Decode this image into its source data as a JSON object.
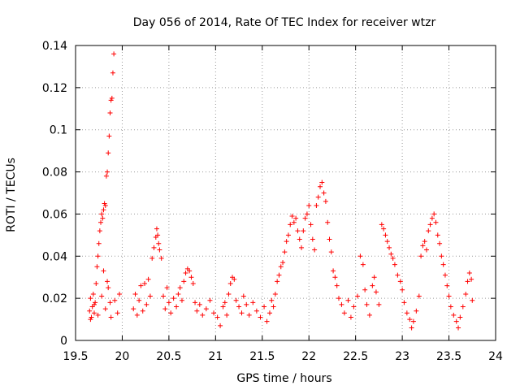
{
  "chart_data": {
    "type": "scatter",
    "title": "Day 056 of 2014, Rate Of TEC Index for receiver wtzr",
    "xlabel": "GPS time / hours",
    "ylabel": "ROTI / TECUs",
    "xlim": [
      19.5,
      24
    ],
    "ylim": [
      0,
      0.14
    ],
    "xticks": [
      19.5,
      20,
      20.5,
      21,
      21.5,
      22,
      22.5,
      23,
      23.5,
      24
    ],
    "xtick_labels": [
      "19.5",
      "20",
      "20.5",
      "21",
      "21.5",
      "22",
      "22.5",
      "23",
      "23.5",
      "24"
    ],
    "yticks": [
      0,
      0.02,
      0.04,
      0.06,
      0.08,
      0.1,
      0.12,
      0.14
    ],
    "ytick_labels": [
      "0",
      "0.02",
      "0.04",
      "0.06",
      "0.08",
      "0.1",
      "0.12",
      "0.14"
    ],
    "grid": true,
    "marker": "plus",
    "color": "#ff0000",
    "series": [
      {
        "name": "ROTI",
        "points": [
          [
            19.65,
            0.014
          ],
          [
            19.66,
            0.02
          ],
          [
            19.67,
            0.011
          ],
          [
            19.68,
            0.016
          ],
          [
            19.69,
            0.022
          ],
          [
            19.7,
            0.013
          ],
          [
            19.71,
            0.018
          ],
          [
            19.72,
            0.027
          ],
          [
            19.73,
            0.035
          ],
          [
            19.74,
            0.04
          ],
          [
            19.75,
            0.046
          ],
          [
            19.76,
            0.052
          ],
          [
            19.77,
            0.056
          ],
          [
            19.78,
            0.06
          ],
          [
            19.79,
            0.058
          ],
          [
            19.8,
            0.062
          ],
          [
            19.81,
            0.065
          ],
          [
            19.82,
            0.064
          ],
          [
            19.83,
            0.078
          ],
          [
            19.84,
            0.08
          ],
          [
            19.85,
            0.089
          ],
          [
            19.86,
            0.097
          ],
          [
            19.87,
            0.108
          ],
          [
            19.88,
            0.114
          ],
          [
            19.89,
            0.115
          ],
          [
            19.9,
            0.127
          ],
          [
            19.91,
            0.136
          ],
          [
            19.66,
            0.01
          ],
          [
            19.7,
            0.017
          ],
          [
            19.74,
            0.012
          ],
          [
            19.78,
            0.021
          ],
          [
            19.82,
            0.015
          ],
          [
            19.85,
            0.025
          ],
          [
            19.88,
            0.011
          ],
          [
            19.92,
            0.019
          ],
          [
            19.95,
            0.013
          ],
          [
            19.97,
            0.022
          ],
          [
            19.8,
            0.033
          ],
          [
            19.84,
            0.028
          ],
          [
            19.87,
            0.018
          ],
          [
            20.12,
            0.015
          ],
          [
            20.14,
            0.022
          ],
          [
            20.16,
            0.012
          ],
          [
            20.18,
            0.019
          ],
          [
            20.2,
            0.026
          ],
          [
            20.22,
            0.014
          ],
          [
            20.24,
            0.027
          ],
          [
            20.26,
            0.017
          ],
          [
            20.28,
            0.029
          ],
          [
            20.3,
            0.021
          ],
          [
            20.32,
            0.039
          ],
          [
            20.34,
            0.044
          ],
          [
            20.36,
            0.049
          ],
          [
            20.37,
            0.053
          ],
          [
            20.38,
            0.05
          ],
          [
            20.39,
            0.046
          ],
          [
            20.4,
            0.043
          ],
          [
            20.42,
            0.039
          ],
          [
            20.44,
            0.021
          ],
          [
            20.46,
            0.015
          ],
          [
            20.48,
            0.025
          ],
          [
            20.5,
            0.018
          ],
          [
            20.52,
            0.013
          ],
          [
            20.55,
            0.02
          ],
          [
            20.58,
            0.016
          ],
          [
            20.6,
            0.022
          ],
          [
            20.62,
            0.025
          ],
          [
            20.64,
            0.019
          ],
          [
            20.66,
            0.028
          ],
          [
            20.68,
            0.032
          ],
          [
            20.7,
            0.034
          ],
          [
            20.72,
            0.033
          ],
          [
            20.74,
            0.03
          ],
          [
            20.76,
            0.027
          ],
          [
            20.78,
            0.018
          ],
          [
            20.8,
            0.014
          ],
          [
            20.83,
            0.017
          ],
          [
            20.86,
            0.012
          ],
          [
            20.9,
            0.015
          ],
          [
            20.94,
            0.019
          ],
          [
            20.98,
            0.013
          ],
          [
            21.02,
            0.011
          ],
          [
            21.05,
            0.007
          ],
          [
            21.08,
            0.016
          ],
          [
            21.1,
            0.018
          ],
          [
            21.12,
            0.012
          ],
          [
            21.14,
            0.022
          ],
          [
            21.16,
            0.027
          ],
          [
            21.18,
            0.03
          ],
          [
            21.2,
            0.029
          ],
          [
            21.22,
            0.019
          ],
          [
            21.25,
            0.016
          ],
          [
            21.28,
            0.013
          ],
          [
            21.3,
            0.021
          ],
          [
            21.33,
            0.017
          ],
          [
            21.36,
            0.012
          ],
          [
            21.4,
            0.018
          ],
          [
            21.44,
            0.014
          ],
          [
            21.48,
            0.011
          ],
          [
            21.52,
            0.016
          ],
          [
            21.55,
            0.009
          ],
          [
            21.58,
            0.013
          ],
          [
            21.6,
            0.019
          ],
          [
            21.62,
            0.016
          ],
          [
            21.64,
            0.022
          ],
          [
            21.66,
            0.028
          ],
          [
            21.68,
            0.031
          ],
          [
            21.7,
            0.035
          ],
          [
            21.72,
            0.037
          ],
          [
            21.74,
            0.042
          ],
          [
            21.76,
            0.047
          ],
          [
            21.78,
            0.05
          ],
          [
            21.8,
            0.055
          ],
          [
            21.82,
            0.059
          ],
          [
            21.84,
            0.056
          ],
          [
            21.86,
            0.058
          ],
          [
            21.88,
            0.052
          ],
          [
            21.9,
            0.048
          ],
          [
            21.92,
            0.044
          ],
          [
            21.94,
            0.052
          ],
          [
            21.96,
            0.058
          ],
          [
            21.98,
            0.06
          ],
          [
            22.0,
            0.064
          ],
          [
            22.02,
            0.055
          ],
          [
            22.04,
            0.048
          ],
          [
            22.06,
            0.043
          ],
          [
            22.08,
            0.064
          ],
          [
            22.1,
            0.068
          ],
          [
            22.12,
            0.073
          ],
          [
            22.14,
            0.075
          ],
          [
            22.16,
            0.07
          ],
          [
            22.18,
            0.066
          ],
          [
            22.2,
            0.056
          ],
          [
            22.22,
            0.048
          ],
          [
            22.24,
            0.042
          ],
          [
            22.26,
            0.033
          ],
          [
            22.28,
            0.03
          ],
          [
            22.3,
            0.026
          ],
          [
            22.32,
            0.02
          ],
          [
            22.35,
            0.017
          ],
          [
            22.38,
            0.013
          ],
          [
            22.42,
            0.019
          ],
          [
            22.45,
            0.011
          ],
          [
            22.48,
            0.016
          ],
          [
            22.52,
            0.021
          ],
          [
            22.55,
            0.04
          ],
          [
            22.58,
            0.036
          ],
          [
            22.6,
            0.024
          ],
          [
            22.62,
            0.017
          ],
          [
            22.65,
            0.012
          ],
          [
            22.68,
            0.026
          ],
          [
            22.7,
            0.03
          ],
          [
            22.72,
            0.023
          ],
          [
            22.75,
            0.017
          ],
          [
            22.78,
            0.055
          ],
          [
            22.8,
            0.053
          ],
          [
            22.82,
            0.05
          ],
          [
            22.84,
            0.047
          ],
          [
            22.86,
            0.044
          ],
          [
            22.88,
            0.041
          ],
          [
            22.9,
            0.039
          ],
          [
            22.92,
            0.036
          ],
          [
            22.95,
            0.031
          ],
          [
            22.98,
            0.028
          ],
          [
            23.0,
            0.024
          ],
          [
            23.02,
            0.018
          ],
          [
            23.05,
            0.013
          ],
          [
            23.08,
            0.01
          ],
          [
            23.1,
            0.006
          ],
          [
            23.12,
            0.009
          ],
          [
            23.15,
            0.014
          ],
          [
            23.18,
            0.021
          ],
          [
            23.2,
            0.04
          ],
          [
            23.22,
            0.045
          ],
          [
            23.24,
            0.047
          ],
          [
            23.26,
            0.043
          ],
          [
            23.28,
            0.052
          ],
          [
            23.3,
            0.055
          ],
          [
            23.32,
            0.058
          ],
          [
            23.34,
            0.06
          ],
          [
            23.36,
            0.056
          ],
          [
            23.38,
            0.05
          ],
          [
            23.4,
            0.046
          ],
          [
            23.42,
            0.04
          ],
          [
            23.44,
            0.036
          ],
          [
            23.46,
            0.031
          ],
          [
            23.48,
            0.026
          ],
          [
            23.5,
            0.021
          ],
          [
            23.52,
            0.016
          ],
          [
            23.55,
            0.012
          ],
          [
            23.58,
            0.009
          ],
          [
            23.6,
            0.006
          ],
          [
            23.62,
            0.011
          ],
          [
            23.65,
            0.016
          ],
          [
            23.68,
            0.022
          ],
          [
            23.7,
            0.028
          ],
          [
            23.72,
            0.032
          ],
          [
            23.74,
            0.029
          ],
          [
            23.75,
            0.019
          ]
        ]
      }
    ]
  }
}
